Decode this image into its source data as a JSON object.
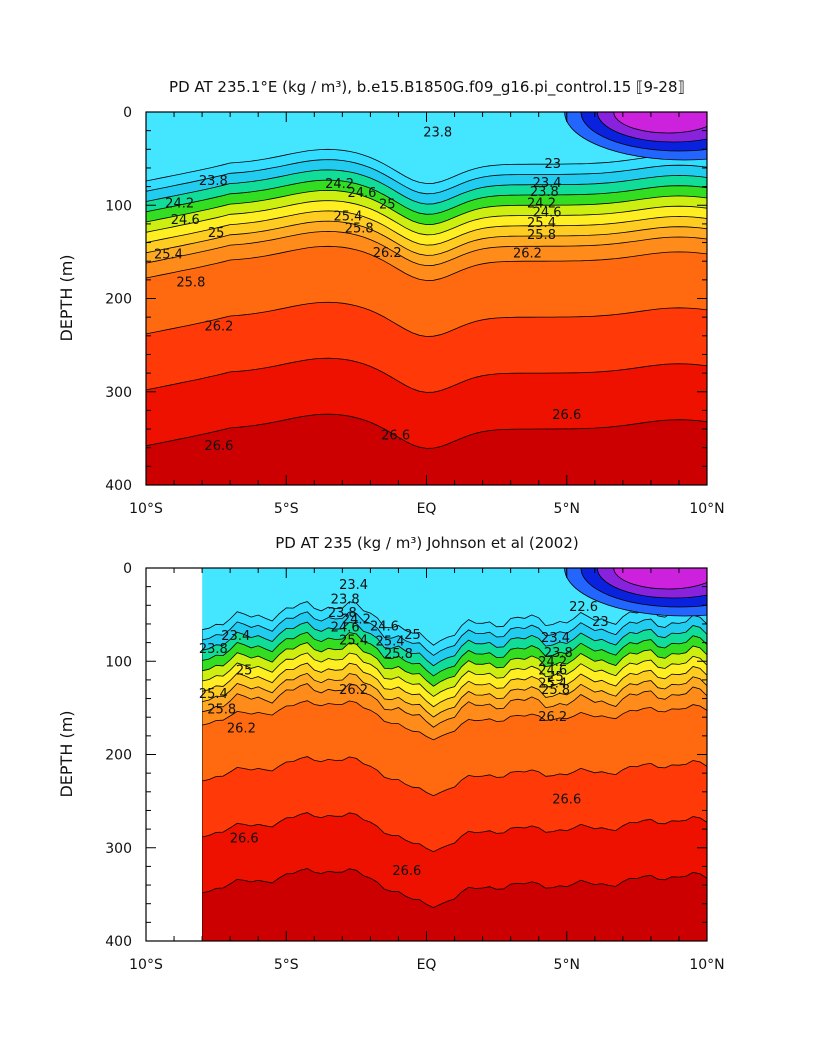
{
  "chart_data": [
    {
      "type": "contour",
      "title": "PD AT 235.1°E (kg / m³), b.e15.B1850G.f09_g16.pi_control.15 ⟦9-28⟧",
      "ylabel": "DEPTH (m)",
      "xlabel": "",
      "xlim": [
        -10,
        10
      ],
      "ylim": [
        400,
        0
      ],
      "x_ticks": [
        -10,
        -5,
        0,
        5,
        10
      ],
      "x_tick_labels": [
        "10°S",
        "5°S",
        "EQ",
        "5°N",
        "10°N"
      ],
      "y_ticks": [
        0,
        100,
        200,
        300,
        400
      ],
      "y_tick_labels": [
        "0",
        "100",
        "200",
        "300",
        "400"
      ],
      "data_start_lat": -10,
      "contour_labels": [
        {
          "text": "23.8",
          "lat": 0.4,
          "depth": 22
        },
        {
          "text": "23.8",
          "lat": -7.6,
          "depth": 74
        },
        {
          "text": "24.2",
          "lat": -8.8,
          "depth": 98
        },
        {
          "text": "24.6",
          "lat": -8.6,
          "depth": 116
        },
        {
          "text": "25",
          "lat": -7.5,
          "depth": 130
        },
        {
          "text": "25.4",
          "lat": -9.2,
          "depth": 153
        },
        {
          "text": "25.8",
          "lat": -8.4,
          "depth": 183
        },
        {
          "text": "26.2",
          "lat": -7.4,
          "depth": 230
        },
        {
          "text": "24.2",
          "lat": -3.1,
          "depth": 77
        },
        {
          "text": "24.6",
          "lat": -2.3,
          "depth": 87
        },
        {
          "text": "25",
          "lat": -1.4,
          "depth": 99
        },
        {
          "text": "25.4",
          "lat": -2.8,
          "depth": 112
        },
        {
          "text": "25.8",
          "lat": -2.4,
          "depth": 125
        },
        {
          "text": "26.2",
          "lat": -1.4,
          "depth": 151
        },
        {
          "text": "23",
          "lat": 4.5,
          "depth": 56
        },
        {
          "text": "23.4",
          "lat": 4.3,
          "depth": 76
        },
        {
          "text": "23.8",
          "lat": 4.2,
          "depth": 86
        },
        {
          "text": "24.2",
          "lat": 4.1,
          "depth": 98
        },
        {
          "text": "24.6",
          "lat": 4.3,
          "depth": 108
        },
        {
          "text": "25.4",
          "lat": 4.1,
          "depth": 119
        },
        {
          "text": "25.8",
          "lat": 4.1,
          "depth": 132
        },
        {
          "text": "26.2",
          "lat": 3.6,
          "depth": 152
        },
        {
          "text": "26.6",
          "lat": -7.4,
          "depth": 358
        },
        {
          "text": "26.6",
          "lat": -1.1,
          "depth": 347
        },
        {
          "text": "26.6",
          "lat": 5.0,
          "depth": 325
        }
      ]
    },
    {
      "type": "contour",
      "title": "PD AT 235 (kg / m³) Johnson et al (2002)",
      "ylabel": "DEPTH (m)",
      "xlabel": "",
      "xlim": [
        -10,
        10
      ],
      "ylim": [
        400,
        0
      ],
      "x_ticks": [
        -10,
        -5,
        0,
        5,
        10
      ],
      "x_tick_labels": [
        "10°S",
        "5°S",
        "EQ",
        "5°N",
        "10°N"
      ],
      "y_ticks": [
        0,
        100,
        200,
        300,
        400
      ],
      "y_tick_labels": [
        "0",
        "100",
        "200",
        "300",
        "400"
      ],
      "data_start_lat": -8,
      "contour_labels": [
        {
          "text": "23.4",
          "lat": -2.6,
          "depth": 18
        },
        {
          "text": "23.8",
          "lat": -2.9,
          "depth": 34
        },
        {
          "text": "23.8",
          "lat": -3.0,
          "depth": 48
        },
        {
          "text": "24.2",
          "lat": -2.5,
          "depth": 55
        },
        {
          "text": "24.6",
          "lat": -2.9,
          "depth": 64
        },
        {
          "text": "24.6",
          "lat": -1.5,
          "depth": 63
        },
        {
          "text": "25",
          "lat": -0.5,
          "depth": 72
        },
        {
          "text": "25.4",
          "lat": -2.6,
          "depth": 78
        },
        {
          "text": "25.4",
          "lat": -1.3,
          "depth": 79
        },
        {
          "text": "25.8",
          "lat": -1.0,
          "depth": 92
        },
        {
          "text": "23.4",
          "lat": -6.8,
          "depth": 73
        },
        {
          "text": "23.8",
          "lat": -7.6,
          "depth": 87
        },
        {
          "text": "25",
          "lat": -6.5,
          "depth": 110
        },
        {
          "text": "25.4",
          "lat": -7.6,
          "depth": 135
        },
        {
          "text": "25.8",
          "lat": -7.3,
          "depth": 152
        },
        {
          "text": "26.2",
          "lat": -6.6,
          "depth": 172
        },
        {
          "text": "26.2",
          "lat": -2.6,
          "depth": 131
        },
        {
          "text": "22.6",
          "lat": 5.6,
          "depth": 42
        },
        {
          "text": "23",
          "lat": 6.2,
          "depth": 58
        },
        {
          "text": "23.4",
          "lat": 4.6,
          "depth": 75
        },
        {
          "text": "23.8",
          "lat": 4.7,
          "depth": 91
        },
        {
          "text": "24.2",
          "lat": 4.5,
          "depth": 101
        },
        {
          "text": "24.6",
          "lat": 4.5,
          "depth": 110
        },
        {
          "text": "25",
          "lat": 4.6,
          "depth": 117
        },
        {
          "text": "25.4",
          "lat": 4.5,
          "depth": 124
        },
        {
          "text": "25.8",
          "lat": 4.6,
          "depth": 131
        },
        {
          "text": "26.2",
          "lat": 4.5,
          "depth": 160
        },
        {
          "text": "26.6",
          "lat": -6.5,
          "depth": 290
        },
        {
          "text": "26.6",
          "lat": -0.7,
          "depth": 325
        },
        {
          "text": "26.6",
          "lat": 5.0,
          "depth": 248
        }
      ]
    }
  ]
}
